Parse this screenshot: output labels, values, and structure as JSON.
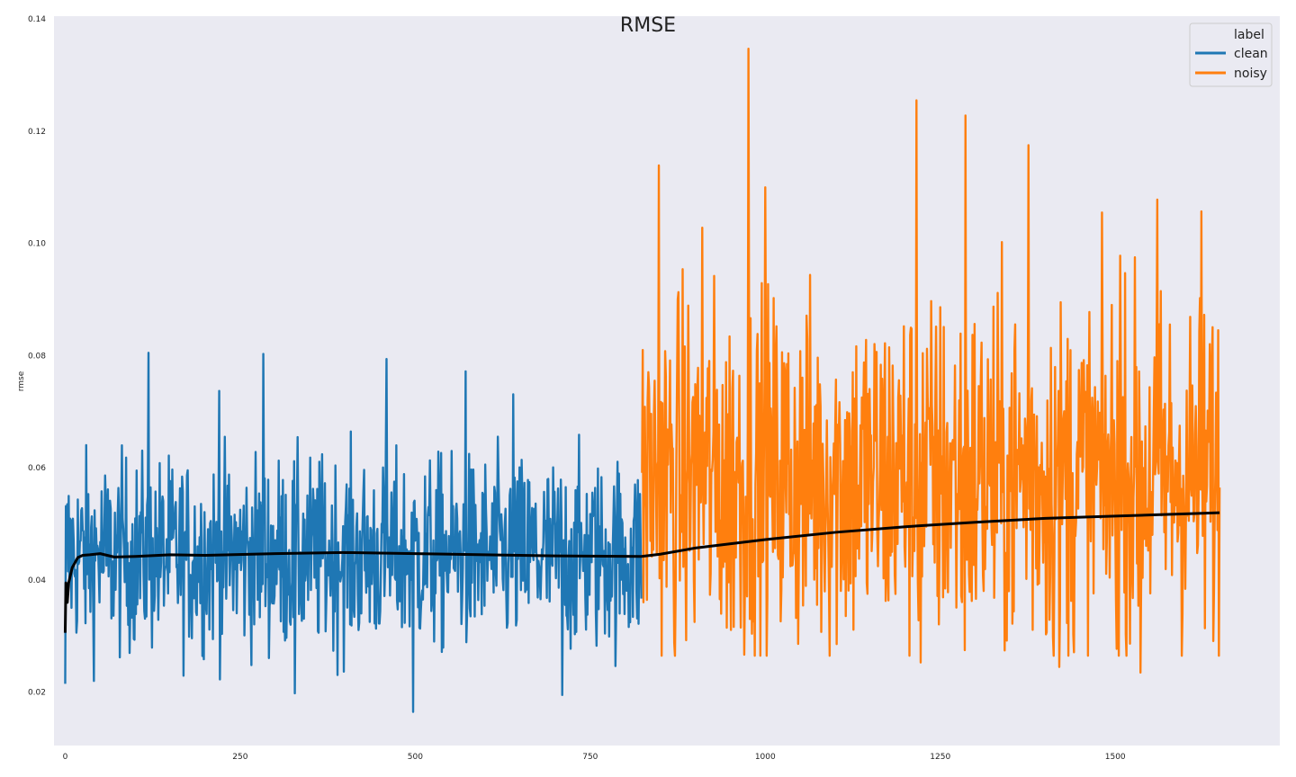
{
  "chart_data": {
    "type": "line",
    "title": "RMSE",
    "xlabel": "",
    "ylabel": "rmse",
    "xlim": [
      -16,
      1735
    ],
    "ylim": [
      0.0105,
      0.1405
    ],
    "xticks": [
      0,
      250,
      500,
      750,
      1000,
      1250,
      1500
    ],
    "xtick_labels": [
      "0",
      "250",
      "500",
      "750",
      "1000",
      "1250",
      "1500"
    ],
    "yticks": [
      0.02,
      0.04,
      0.06,
      0.08,
      0.1,
      0.12,
      0.14
    ],
    "ytick_labels": [
      "0.02",
      "0.04",
      "0.06",
      "0.08",
      "0.10",
      "0.12",
      "0.14"
    ],
    "grid": false,
    "background": "#eaeaf2",
    "legend": {
      "title": "label",
      "placement": "top-right",
      "entries": [
        "clean",
        "noisy"
      ]
    },
    "series": [
      {
        "name": "clean",
        "color": "#1f77b4",
        "x_range": [
          0,
          823
        ],
        "mean": 0.0445,
        "spread": 0.0085,
        "min": 0.0165,
        "max": 0.0805,
        "spikes": [
          [
            0,
            0.0215
          ],
          [
            119,
            0.0805
          ],
          [
            283,
            0.0803
          ],
          [
            328,
            0.0198
          ],
          [
            459,
            0.0794
          ],
          [
            497,
            0.0165
          ],
          [
            572,
            0.0772
          ],
          [
            710,
            0.0195
          ],
          [
            220,
            0.0737
          ],
          [
            640,
            0.0731
          ]
        ]
      },
      {
        "name": "noisy",
        "color": "#ff7f0e",
        "x_range": [
          824,
          1649
        ],
        "mean": 0.0585,
        "spread": 0.016,
        "min": 0.0235,
        "max": 0.1347,
        "spikes": [
          [
            976,
            0.1347
          ],
          [
            1216,
            0.1255
          ],
          [
            1286,
            0.1228
          ],
          [
            1376,
            0.1175
          ],
          [
            848,
            0.1139
          ],
          [
            1000,
            0.11
          ],
          [
            1560,
            0.1078
          ],
          [
            1623,
            0.1057
          ],
          [
            910,
            0.1028
          ],
          [
            1507,
            0.0978
          ],
          [
            1222,
            0.0253
          ],
          [
            1420,
            0.0245
          ],
          [
            1536,
            0.0235
          ],
          [
            1285,
            0.0275
          ],
          [
            870,
            0.0288
          ],
          [
            945,
            0.0315
          ]
        ]
      },
      {
        "name": "",
        "color": "#000000",
        "kind": "running-mean",
        "points": [
          [
            0,
            0.0306
          ],
          [
            1,
            0.0395
          ],
          [
            3,
            0.036
          ],
          [
            5,
            0.0395
          ],
          [
            10,
            0.0422
          ],
          [
            18,
            0.044
          ],
          [
            25,
            0.0444
          ],
          [
            35,
            0.0445
          ],
          [
            50,
            0.0447
          ],
          [
            70,
            0.0441
          ],
          [
            100,
            0.0442
          ],
          [
            150,
            0.0445
          ],
          [
            200,
            0.0444
          ],
          [
            300,
            0.0447
          ],
          [
            400,
            0.0449
          ],
          [
            500,
            0.0447
          ],
          [
            600,
            0.0445
          ],
          [
            700,
            0.0443
          ],
          [
            823,
            0.0442
          ],
          [
            850,
            0.0446
          ],
          [
            900,
            0.0457
          ],
          [
            1000,
            0.0472
          ],
          [
            1100,
            0.0485
          ],
          [
            1200,
            0.0495
          ],
          [
            1300,
            0.0503
          ],
          [
            1400,
            0.051
          ],
          [
            1500,
            0.0514
          ],
          [
            1600,
            0.0518
          ],
          [
            1649,
            0.052
          ]
        ]
      }
    ]
  }
}
